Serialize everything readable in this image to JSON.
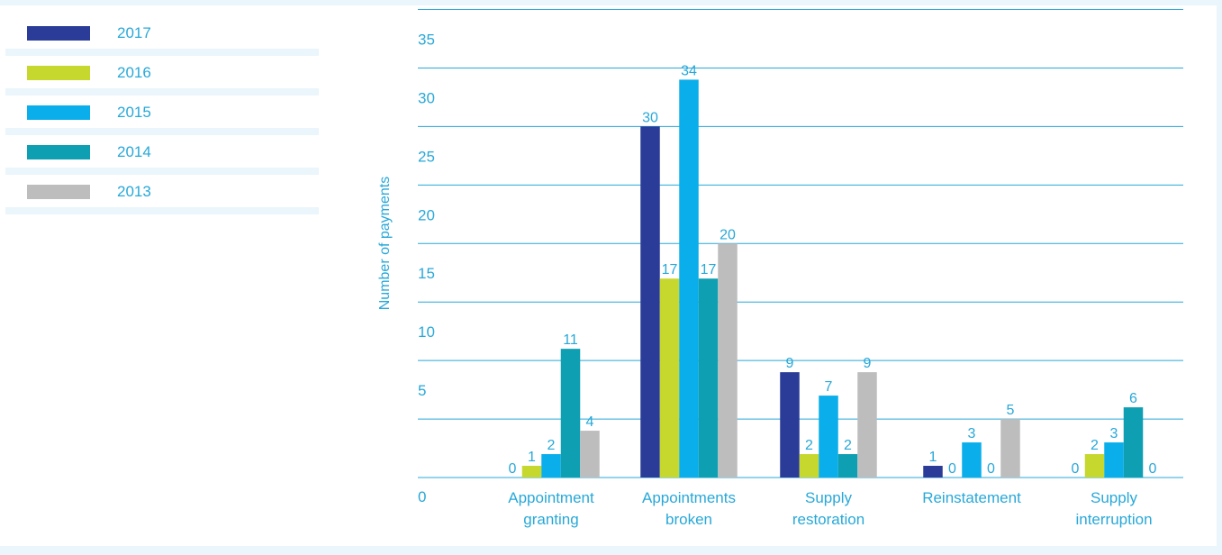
{
  "chart_data": {
    "type": "bar",
    "ylabel": "Number of payments",
    "ylim": [
      0,
      40
    ],
    "yticks": [
      0,
      5,
      10,
      15,
      20,
      25,
      30,
      35,
      40
    ],
    "grid": true,
    "legend_position": "left",
    "categories": [
      [
        "Appointment",
        "granting"
      ],
      [
        "Appointments",
        "broken"
      ],
      [
        "Supply",
        "restoration"
      ],
      [
        "Reinstatement"
      ],
      [
        "Supply",
        "interruption"
      ]
    ],
    "series": [
      {
        "name": "2017",
        "color": "#2a3c97",
        "values": [
          0,
          30,
          9,
          1,
          0
        ]
      },
      {
        "name": "2016",
        "color": "#c6d72e",
        "values": [
          1,
          17,
          2,
          0,
          2
        ]
      },
      {
        "name": "2015",
        "color": "#0aaeea",
        "values": [
          2,
          34,
          7,
          3,
          3
        ]
      },
      {
        "name": "2014",
        "color": "#0e9fb3",
        "values": [
          11,
          17,
          2,
          0,
          6
        ]
      },
      {
        "name": "2013",
        "color": "#bdbdbd",
        "values": [
          4,
          20,
          9,
          5,
          0
        ]
      }
    ],
    "label_color": "#28a8d8",
    "grid_color": "#28a8d8"
  }
}
